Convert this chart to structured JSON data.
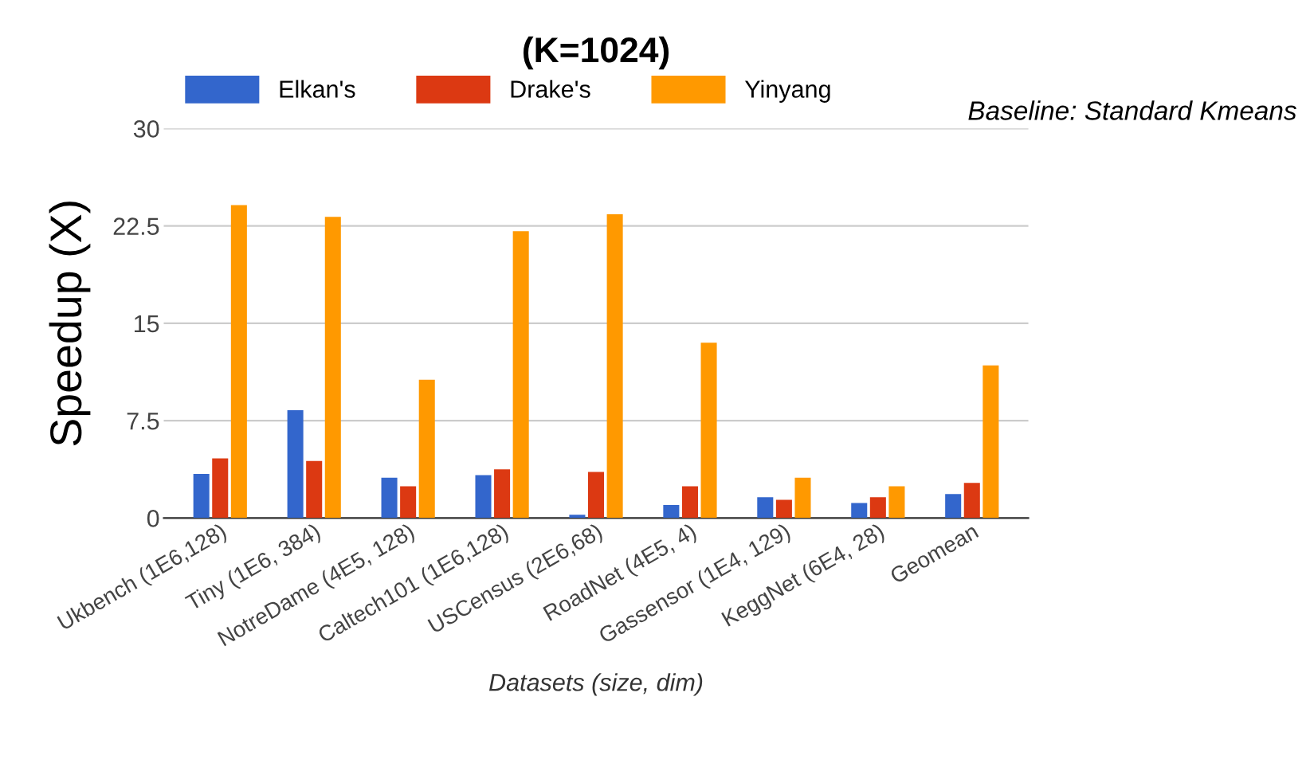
{
  "chart_data": {
    "type": "bar",
    "title": "(K=1024)",
    "xlabel": "Datasets (size, dim)",
    "ylabel": "Speedup (X)",
    "annotations": [
      "Baseline: Standard Kmeans"
    ],
    "categories": [
      "Ukbench (1E6,128)",
      "Tiny (1E6, 384)",
      "NotreDame (4E5, 128)",
      "Caltech101 (1E6,128)",
      "USCensus (2E6,68)",
      "RoadNet (4E5, 4)",
      "Gassensor (1E4, 129)",
      "KeggNet (6E4, 28)",
      "Geomean"
    ],
    "series": [
      {
        "name": "Elkan's",
        "color": "#3366cc",
        "values": [
          3.4,
          8.3,
          3.1,
          3.3,
          0.25,
          1.0,
          1.6,
          1.15,
          1.85
        ]
      },
      {
        "name": "Drake's",
        "color": "#dc3912",
        "values": [
          4.6,
          4.4,
          2.45,
          3.75,
          3.55,
          2.45,
          1.4,
          1.6,
          2.7
        ]
      },
      {
        "name": "Yinyang",
        "color": "#ff9900",
        "values": [
          24.1,
          23.2,
          10.65,
          22.1,
          23.4,
          13.5,
          3.1,
          2.45,
          11.75
        ]
      }
    ],
    "ylim": [
      0,
      30
    ],
    "yticks": [
      0,
      7.5,
      15,
      22.5,
      30
    ],
    "grid": "y",
    "legend": "top left"
  }
}
